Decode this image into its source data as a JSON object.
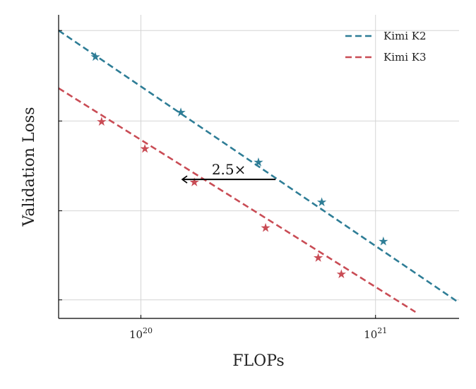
{
  "chart_data": {
    "type": "line",
    "title": "",
    "xlabel": "FLOPs",
    "ylabel": "Validation Loss",
    "x_scale": "log",
    "xlim": [
      4.46e+19,
      2.27e+21
    ],
    "ylim": [
      0.574,
      1.0
    ],
    "x_ticks": [
      {
        "value": 1e+20,
        "base": "10",
        "exp": "20"
      },
      {
        "value": 1e+21,
        "base": "10",
        "exp": "21"
      }
    ],
    "y_ticks": [
      0.6,
      0.725,
      0.851,
      0.978
    ],
    "grid": true,
    "legend_position": "top-right",
    "series": [
      {
        "name": "Kimi K2",
        "color": "#2e7d96",
        "fit_line": {
          "x": [
            4.46e+19,
            2.27e+21
          ],
          "y": [
            0.978,
            0.596
          ]
        },
        "points": [
          {
            "x": 6.4e+19,
            "y": 0.941
          },
          {
            "x": 1.48e+20,
            "y": 0.863
          },
          {
            "x": 3.17e+20,
            "y": 0.793
          },
          {
            "x": 5.9e+20,
            "y": 0.737
          },
          {
            "x": 1.08e+21,
            "y": 0.682
          }
        ]
      },
      {
        "name": "Kimi K3",
        "color": "#c94c55",
        "fit_line": {
          "x": [
            4.46e+19,
            1.48e+21
          ],
          "y": [
            0.897,
            0.583
          ]
        },
        "points": [
          {
            "x": 6.8e+19,
            "y": 0.85
          },
          {
            "x": 1.04e+20,
            "y": 0.812
          },
          {
            "x": 1.69e+20,
            "y": 0.765
          },
          {
            "x": 3.4e+20,
            "y": 0.701
          },
          {
            "x": 5.7e+20,
            "y": 0.659
          },
          {
            "x": 7.15e+20,
            "y": 0.636
          }
        ]
      }
    ],
    "annotation": {
      "text": "2.5×",
      "from": {
        "x": 3.75e+20,
        "y": 0.769
      },
      "to": {
        "x": 1.5e+20,
        "y": 0.769
      }
    }
  }
}
